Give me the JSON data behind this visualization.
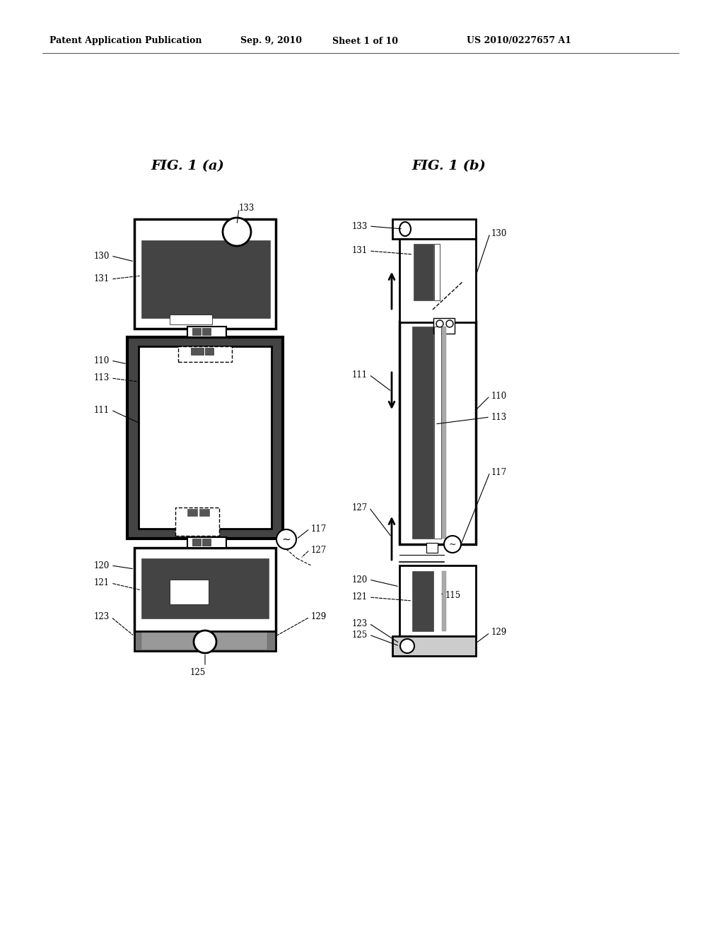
{
  "bg_color": "#ffffff",
  "header_text": "Patent Application Publication",
  "header_date": "Sep. 9, 2010",
  "header_sheet": "Sheet 1 of 10",
  "header_patent": "US 2010/0227657 A1",
  "fig_a_title": "FIG. 1 (a)",
  "fig_b_title": "FIG. 1 (b)",
  "dark_gray": "#444444",
  "medium_gray": "#888888",
  "light_gray": "#cccccc",
  "black": "#000000",
  "white": "#ffffff"
}
